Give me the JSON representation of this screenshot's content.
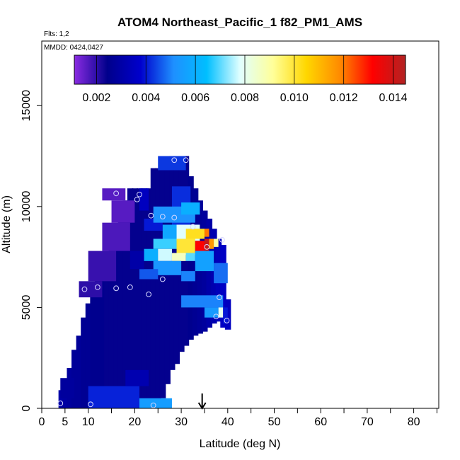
{
  "chart_data": {
    "type": "heatmap",
    "title": "ATOM4 Northeast_Pacific_1 f82_PM1_AMS",
    "flights_note": "Flts: 1,2",
    "dates_note": "MMDD: 0424,0427",
    "xlabel": "Latitude (deg N)",
    "ylabel": "Altitude (m)",
    "xlim": [
      0,
      85
    ],
    "ylim": [
      0,
      18200
    ],
    "x_ticks": [
      0,
      5,
      10,
      20,
      30,
      40,
      50,
      60,
      70,
      80
    ],
    "y_ticks": [
      0,
      5000,
      10000,
      15000
    ],
    "colorbar": {
      "range": [
        0.0011,
        0.0145
      ],
      "ticks": [
        "0.002",
        "0.004",
        "0.006",
        "0.008",
        "0.010",
        "0.012",
        "0.014"
      ],
      "tick_values": [
        0.002,
        0.004,
        0.006,
        0.008,
        0.01,
        0.012,
        0.014
      ],
      "colors": [
        "#8a2be2",
        "#00008b",
        "#0000cd",
        "#1e90ff",
        "#00bfff",
        "#e0ffff",
        "#ffff99",
        "#ffd700",
        "#ff8c00",
        "#ff0000",
        "#b22222"
      ]
    },
    "marker": {
      "type": "arrow",
      "x": 34.5
    },
    "grid": false,
    "legend": "none",
    "column_width": 1.2,
    "columns": [
      {
        "x": 4.2,
        "ybot": 0,
        "ytop": 900,
        "value": 0.003
      },
      {
        "x": 5.0,
        "ybot": 0,
        "ytop": 1000,
        "value": 0.0029
      },
      {
        "x": 6.0,
        "ybot": 0,
        "ytop": 2000,
        "value": 0.0028
      },
      {
        "x": 7.0,
        "ybot": 0,
        "ytop": 2900,
        "value": 0.0027
      },
      {
        "x": 8.0,
        "ybot": 0,
        "ytop": 3600,
        "value": 0.0027
      },
      {
        "x": 9.0,
        "ybot": 0,
        "ytop": 4500,
        "value": 0.0026
      },
      {
        "x": 10.0,
        "ybot": 0,
        "ytop": 5200,
        "value": 0.0026
      },
      {
        "x": 11.0,
        "ybot": 0,
        "ytop": 5800,
        "value": 0.0025
      },
      {
        "x": 12.0,
        "ybot": 0,
        "ytop": 6400,
        "value": 0.0025
      },
      {
        "x": 13.0,
        "ybot": 0,
        "ytop": 7000,
        "value": 0.0025
      },
      {
        "x": 14.0,
        "ybot": 0,
        "ytop": 7600,
        "value": 0.0024
      },
      {
        "x": 15.0,
        "ybot": 0,
        "ytop": 8300,
        "value": 0.0024
      },
      {
        "x": 16.0,
        "ybot": 0,
        "ytop": 9000,
        "value": 0.0024
      },
      {
        "x": 17.0,
        "ybot": 0,
        "ytop": 9700,
        "value": 0.0024
      },
      {
        "x": 18.0,
        "ybot": 0,
        "ytop": 10300,
        "value": 0.0024
      },
      {
        "x": 19.0,
        "ybot": 0,
        "ytop": 10900,
        "value": 0.0024
      },
      {
        "x": 20.0,
        "ybot": 0,
        "ytop": 10900,
        "value": 0.0024
      },
      {
        "x": 21.0,
        "ybot": 0,
        "ytop": 10900,
        "value": 0.0024
      },
      {
        "x": 22.0,
        "ybot": 0,
        "ytop": 10900,
        "value": 0.0024
      },
      {
        "x": 23.0,
        "ybot": 0,
        "ytop": 10900,
        "value": 0.0024
      },
      {
        "x": 24.0,
        "ybot": 0,
        "ytop": 11900,
        "value": 0.0024
      },
      {
        "x": 25.0,
        "ybot": 0,
        "ytop": 11900,
        "value": 0.0024
      },
      {
        "x": 26.0,
        "ybot": 500,
        "ytop": 11900,
        "value": 0.0024
      },
      {
        "x": 27.0,
        "ybot": 1200,
        "ytop": 11900,
        "value": 0.0024
      },
      {
        "x": 28.0,
        "ybot": 1900,
        "ytop": 12500,
        "value": 0.0024
      },
      {
        "x": 29.0,
        "ybot": 2200,
        "ytop": 12500,
        "value": 0.0024
      },
      {
        "x": 30.0,
        "ybot": 2800,
        "ytop": 12500,
        "value": 0.0024
      },
      {
        "x": 31.0,
        "ybot": 3100,
        "ytop": 12500,
        "value": 0.0024
      },
      {
        "x": 32.0,
        "ybot": 3400,
        "ytop": 11500,
        "value": 0.0025
      },
      {
        "x": 33.0,
        "ybot": 3600,
        "ytop": 10900,
        "value": 0.0026
      },
      {
        "x": 34.0,
        "ybot": 3700,
        "ytop": 10300,
        "value": 0.0027
      },
      {
        "x": 35.0,
        "ybot": 3800,
        "ytop": 9800,
        "value": 0.0028
      },
      {
        "x": 36.0,
        "ybot": 4000,
        "ytop": 9400,
        "value": 0.003
      },
      {
        "x": 37.0,
        "ybot": 4200,
        "ytop": 8900,
        "value": 0.0032
      },
      {
        "x": 38.0,
        "ybot": 4300,
        "ytop": 8400,
        "value": 0.0034
      },
      {
        "x": 39.0,
        "ybot": 4000,
        "ytop": 8100,
        "value": 0.0036
      },
      {
        "x": 40.0,
        "ybot": 3900,
        "ytop": 5400,
        "value": 0.0035
      }
    ],
    "cells": [
      {
        "x0": 4,
        "x1": 7,
        "y0": 500,
        "y1": 1500,
        "value": 0.0028
      },
      {
        "x0": 10,
        "x1": 21,
        "y0": 0,
        "y1": 1100,
        "value": 0.0041
      },
      {
        "x0": 21,
        "x1": 28,
        "y0": 0,
        "y1": 500,
        "value": 0.0055
      },
      {
        "x0": 18,
        "x1": 23,
        "y0": 1100,
        "y1": 1900,
        "value": 0.0032
      },
      {
        "x0": 13,
        "x1": 18,
        "y0": 10300,
        "y1": 10900,
        "value": 0.0016
      },
      {
        "x0": 15,
        "x1": 20,
        "y0": 9200,
        "y1": 10300,
        "value": 0.0016
      },
      {
        "x0": 13,
        "x1": 19,
        "y0": 7800,
        "y1": 9200,
        "value": 0.0017
      },
      {
        "x0": 10,
        "x1": 16,
        "y0": 6300,
        "y1": 7800,
        "value": 0.0019
      },
      {
        "x0": 8,
        "x1": 13,
        "y0": 5500,
        "y1": 6300,
        "value": 0.002
      },
      {
        "x0": 21,
        "x1": 23,
        "y0": 9800,
        "y1": 10900,
        "value": 0.0035
      },
      {
        "x0": 25,
        "x1": 31,
        "y0": 11800,
        "y1": 12500,
        "value": 0.0043
      },
      {
        "x0": 28,
        "x1": 32,
        "y0": 9000,
        "y1": 11000,
        "value": 0.0042
      },
      {
        "x0": 22,
        "x1": 26,
        "y0": 8800,
        "y1": 9400,
        "value": 0.004
      },
      {
        "x0": 24,
        "x1": 33,
        "y0": 9200,
        "y1": 10000,
        "value": 0.0052
      },
      {
        "x0": 30,
        "x1": 34,
        "y0": 9600,
        "y1": 10200,
        "value": 0.006
      },
      {
        "x0": 26,
        "x1": 29,
        "y0": 8200,
        "y1": 9100,
        "value": 0.0058
      },
      {
        "x0": 29,
        "x1": 34,
        "y0": 8300,
        "y1": 9100,
        "value": 0.0078
      },
      {
        "x0": 31,
        "x1": 35,
        "y0": 8400,
        "y1": 8900,
        "value": 0.0102
      },
      {
        "x0": 35,
        "x1": 36,
        "y0": 8500,
        "y1": 8900,
        "value": 0.012
      },
      {
        "x0": 24,
        "x1": 29,
        "y0": 7900,
        "y1": 8400,
        "value": 0.0068
      },
      {
        "x0": 29,
        "x1": 33,
        "y0": 7600,
        "y1": 8400,
        "value": 0.01
      },
      {
        "x0": 33,
        "x1": 35,
        "y0": 7700,
        "y1": 8300,
        "value": 0.0132
      },
      {
        "x0": 35,
        "x1": 36,
        "y0": 7800,
        "y1": 8400,
        "value": 0.0142
      },
      {
        "x0": 36,
        "x1": 37,
        "y0": 7900,
        "y1": 8400,
        "value": 0.0116
      },
      {
        "x0": 37,
        "x1": 38,
        "y0": 8000,
        "y1": 8400,
        "value": 0.009
      },
      {
        "x0": 22,
        "x1": 25,
        "y0": 7300,
        "y1": 7900,
        "value": 0.006
      },
      {
        "x0": 25,
        "x1": 28,
        "y0": 7300,
        "y1": 7900,
        "value": 0.0077
      },
      {
        "x0": 28,
        "x1": 31,
        "y0": 7300,
        "y1": 7700,
        "value": 0.0086
      },
      {
        "x0": 31,
        "x1": 33,
        "y0": 7300,
        "y1": 7700,
        "value": 0.007
      },
      {
        "x0": 33,
        "x1": 37,
        "y0": 6800,
        "y1": 7800,
        "value": 0.0056
      },
      {
        "x0": 24,
        "x1": 30,
        "y0": 6600,
        "y1": 7300,
        "value": 0.0053
      },
      {
        "x0": 21,
        "x1": 25,
        "y0": 6400,
        "y1": 6900,
        "value": 0.0046
      },
      {
        "x0": 30,
        "x1": 33,
        "y0": 6300,
        "y1": 6800,
        "value": 0.005
      },
      {
        "x0": 37,
        "x1": 40,
        "y0": 6200,
        "y1": 7200,
        "value": 0.0048
      },
      {
        "x0": 19,
        "x1": 22,
        "y0": 6900,
        "y1": 7800,
        "value": 0.003
      },
      {
        "x0": 30,
        "x1": 39,
        "y0": 5000,
        "y1": 5600,
        "value": 0.005
      },
      {
        "x0": 35,
        "x1": 38,
        "y0": 4500,
        "y1": 5000,
        "value": 0.0054
      },
      {
        "x0": 38,
        "x1": 39,
        "y0": 4500,
        "y1": 5000,
        "value": 0.008
      },
      {
        "x0": 39,
        "x1": 40,
        "y0": 4200,
        "y1": 5000,
        "value": 0.004
      }
    ],
    "points": [
      {
        "x": 4,
        "y": 250
      },
      {
        "x": 10.5,
        "y": 200
      },
      {
        "x": 24,
        "y": 150
      },
      {
        "x": 9.2,
        "y": 5900
      },
      {
        "x": 12,
        "y": 6000
      },
      {
        "x": 16,
        "y": 5950
      },
      {
        "x": 19,
        "y": 6000
      },
      {
        "x": 23,
        "y": 5650
      },
      {
        "x": 26,
        "y": 6400
      },
      {
        "x": 37.5,
        "y": 4550
      },
      {
        "x": 39.8,
        "y": 4350
      },
      {
        "x": 38.2,
        "y": 5500
      },
      {
        "x": 16,
        "y": 10650
      },
      {
        "x": 21,
        "y": 10600
      },
      {
        "x": 20.5,
        "y": 10350
      },
      {
        "x": 23.5,
        "y": 9550
      },
      {
        "x": 26,
        "y": 9500
      },
      {
        "x": 28.5,
        "y": 9450
      },
      {
        "x": 32.5,
        "y": 9000
      },
      {
        "x": 35.5,
        "y": 8000
      },
      {
        "x": 38.8,
        "y": 8350
      },
      {
        "x": 28.5,
        "y": 12300
      },
      {
        "x": 31,
        "y": 12300
      }
    ]
  }
}
